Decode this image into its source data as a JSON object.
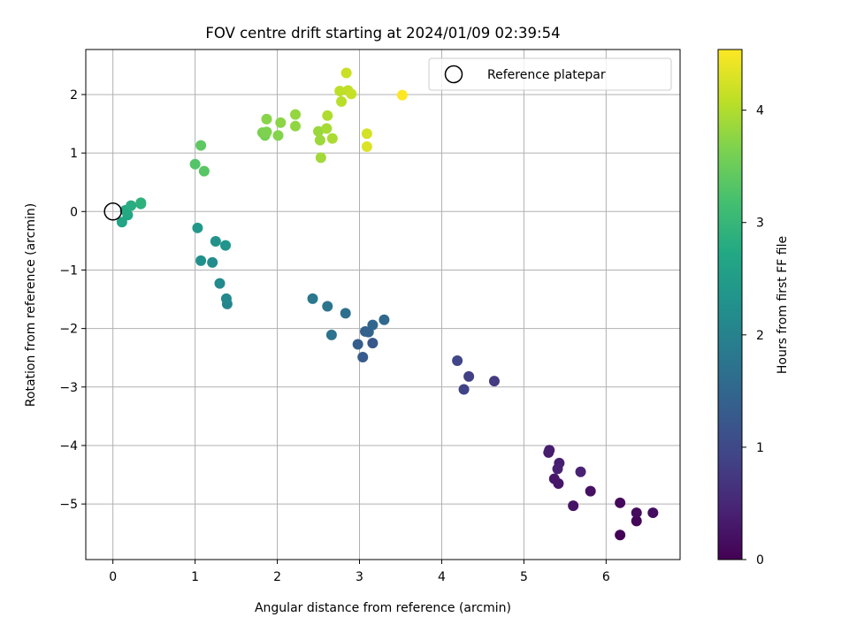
{
  "chart_data": {
    "type": "scatter",
    "title": "FOV centre drift starting at 2024/01/09 02:39:54",
    "xlabel": "Angular distance from reference (arcmin)",
    "ylabel": "Rotation from reference (arcmin)",
    "xlim": [
      -0.33,
      6.9
    ],
    "ylim": [
      -5.95,
      2.77
    ],
    "xticks": [
      0,
      1,
      2,
      3,
      4,
      5,
      6
    ],
    "yticks": [
      2,
      1,
      0,
      -1,
      -2,
      -3,
      -4,
      -5
    ],
    "grid": true,
    "legend": {
      "placement": "top-right",
      "entries": [
        {
          "label": "Reference platepar",
          "marker": "open-circle"
        }
      ]
    },
    "reference_point": {
      "x": 0,
      "y": 0
    },
    "colorbar": {
      "label": "Hours from first FF file",
      "range": [
        0,
        4.54
      ],
      "ticks": [
        0,
        1,
        2,
        3,
        4
      ],
      "colormap": "viridis"
    },
    "points": [
      {
        "x": 6.17,
        "y": -5.53,
        "h": 0.03
      },
      {
        "x": 6.37,
        "y": -5.29,
        "h": 0.07
      },
      {
        "x": 6.17,
        "y": -4.98,
        "h": 0.1
      },
      {
        "x": 6.37,
        "y": -5.15,
        "h": 0.13
      },
      {
        "x": 6.57,
        "y": -5.15,
        "h": 0.17
      },
      {
        "x": 5.81,
        "y": -4.78,
        "h": 0.2
      },
      {
        "x": 5.6,
        "y": -5.03,
        "h": 0.24
      },
      {
        "x": 5.42,
        "y": -4.65,
        "h": 0.27
      },
      {
        "x": 5.37,
        "y": -4.57,
        "h": 0.3
      },
      {
        "x": 5.3,
        "y": -4.12,
        "h": 0.33
      },
      {
        "x": 5.31,
        "y": -4.08,
        "h": 0.36
      },
      {
        "x": 5.43,
        "y": -4.3,
        "h": 0.39
      },
      {
        "x": 5.41,
        "y": -4.4,
        "h": 0.41
      },
      {
        "x": 5.69,
        "y": -4.45,
        "h": 0.44
      },
      {
        "x": 4.64,
        "y": -2.9,
        "h": 0.8
      },
      {
        "x": 4.33,
        "y": -2.82,
        "h": 0.85
      },
      {
        "x": 4.27,
        "y": -3.04,
        "h": 0.9
      },
      {
        "x": 4.19,
        "y": -2.55,
        "h": 0.95
      },
      {
        "x": 3.16,
        "y": -2.25,
        "h": 1.25
      },
      {
        "x": 3.04,
        "y": -2.49,
        "h": 1.3
      },
      {
        "x": 2.98,
        "y": -2.27,
        "h": 1.35
      },
      {
        "x": 3.07,
        "y": -2.05,
        "h": 1.4
      },
      {
        "x": 3.11,
        "y": -2.06,
        "h": 1.45
      },
      {
        "x": 3.16,
        "y": -1.94,
        "h": 1.5
      },
      {
        "x": 3.3,
        "y": -1.85,
        "h": 1.55
      },
      {
        "x": 2.83,
        "y": -1.74,
        "h": 1.65
      },
      {
        "x": 2.66,
        "y": -2.11,
        "h": 1.7
      },
      {
        "x": 2.61,
        "y": -1.62,
        "h": 1.75
      },
      {
        "x": 2.43,
        "y": -1.49,
        "h": 1.8
      },
      {
        "x": 1.39,
        "y": -1.58,
        "h": 2.05
      },
      {
        "x": 1.38,
        "y": -1.49,
        "h": 2.1
      },
      {
        "x": 1.3,
        "y": -1.23,
        "h": 2.15
      },
      {
        "x": 1.21,
        "y": -0.87,
        "h": 2.2
      },
      {
        "x": 1.07,
        "y": -0.84,
        "h": 2.25
      },
      {
        "x": 1.25,
        "y": -0.51,
        "h": 2.3
      },
      {
        "x": 1.37,
        "y": -0.58,
        "h": 2.35
      },
      {
        "x": 1.03,
        "y": -0.28,
        "h": 2.4
      },
      {
        "x": 0.11,
        "y": -0.18,
        "h": 2.65
      },
      {
        "x": 0.18,
        "y": -0.06,
        "h": 2.7
      },
      {
        "x": 0.15,
        "y": 0.02,
        "h": 2.75
      },
      {
        "x": 0.22,
        "y": 0.1,
        "h": 2.8
      },
      {
        "x": 0.34,
        "y": 0.13,
        "h": 2.85
      },
      {
        "x": 0.34,
        "y": 0.15,
        "h": 2.9
      },
      {
        "x": 1.0,
        "y": 0.81,
        "h": 3.3
      },
      {
        "x": 1.11,
        "y": 0.69,
        "h": 3.35
      },
      {
        "x": 1.07,
        "y": 1.13,
        "h": 3.4
      },
      {
        "x": 1.85,
        "y": 1.3,
        "h": 3.6
      },
      {
        "x": 1.82,
        "y": 1.35,
        "h": 3.63
      },
      {
        "x": 1.87,
        "y": 1.36,
        "h": 3.66
      },
      {
        "x": 2.01,
        "y": 1.3,
        "h": 3.69
      },
      {
        "x": 1.87,
        "y": 1.58,
        "h": 3.72
      },
      {
        "x": 2.04,
        "y": 1.52,
        "h": 3.75
      },
      {
        "x": 2.22,
        "y": 1.46,
        "h": 3.78
      },
      {
        "x": 2.22,
        "y": 1.66,
        "h": 3.81
      },
      {
        "x": 2.5,
        "y": 1.37,
        "h": 3.84
      },
      {
        "x": 2.52,
        "y": 1.22,
        "h": 3.87
      },
      {
        "x": 2.53,
        "y": 0.92,
        "h": 3.9
      },
      {
        "x": 2.6,
        "y": 1.42,
        "h": 3.93
      },
      {
        "x": 2.67,
        "y": 1.25,
        "h": 3.96
      },
      {
        "x": 2.61,
        "y": 1.64,
        "h": 3.99
      },
      {
        "x": 2.78,
        "y": 1.88,
        "h": 4.05
      },
      {
        "x": 2.76,
        "y": 2.06,
        "h": 4.08
      },
      {
        "x": 2.86,
        "y": 2.07,
        "h": 4.11
      },
      {
        "x": 2.9,
        "y": 2.01,
        "h": 4.14
      },
      {
        "x": 2.84,
        "y": 2.37,
        "h": 4.17
      },
      {
        "x": 3.09,
        "y": 1.33,
        "h": 4.25
      },
      {
        "x": 3.09,
        "y": 1.11,
        "h": 4.3
      },
      {
        "x": 3.52,
        "y": 1.99,
        "h": 4.54
      }
    ]
  }
}
